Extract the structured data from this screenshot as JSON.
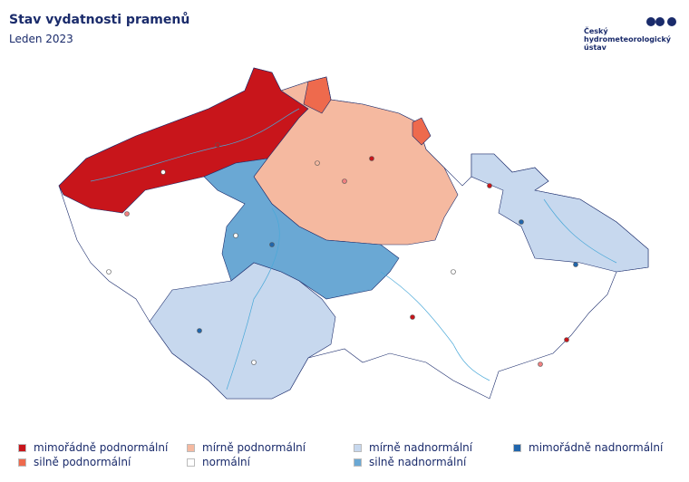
{
  "header": {
    "title": "Stav vydatnosti pramenů",
    "subtitle": "Leden 2023"
  },
  "logo": {
    "lines": [
      "Český",
      "hydrometeorologický",
      "ústav"
    ]
  },
  "legend": {
    "items": [
      {
        "label": "mimořádně podnormální",
        "color": "#c8151b"
      },
      {
        "label": "silně podnormální",
        "color": "#ee6a4d"
      },
      {
        "label": "mírně podnormální",
        "color": "#f5b9a0"
      },
      {
        "label": "normální",
        "color": "#ffffff"
      },
      {
        "label": "mírně nadnormální",
        "color": "#c7d8ee"
      },
      {
        "label": "silně nadnormální",
        "color": "#6aa8d4"
      },
      {
        "label": "mimořádně nadnormální",
        "color": "#2166ac"
      }
    ]
  }
}
